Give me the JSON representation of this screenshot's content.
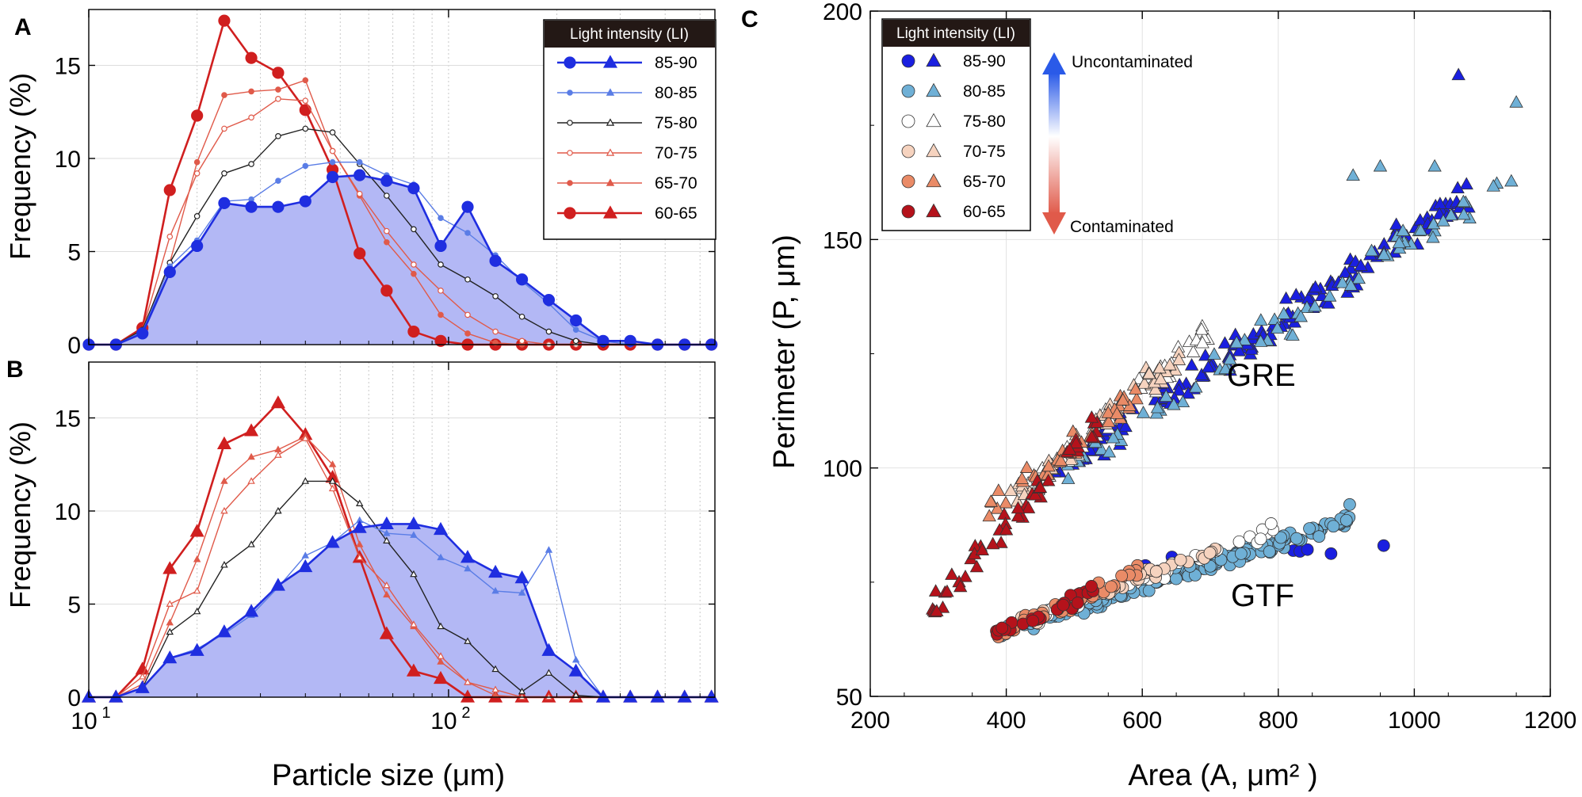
{
  "figure": {
    "panel_labels": [
      "A",
      "B",
      "C"
    ],
    "legend_title": "Light intensity (LI)",
    "x_axis_label_left": "Particle size (μm)",
    "y_axis_label_left": "Frequency (%)",
    "x_axis_label_right": "Area (A, μm² )",
    "y_axis_label_right": "Perimeter (P, μm)",
    "arrow_top_label": "Uncontaminated",
    "arrow_bottom_label": "Contaminated",
    "group_label_1": "GRE",
    "group_label_2": "GTF"
  },
  "colors": {
    "li_85_90": "#1f2ee0",
    "li_80_85": "#5a7de6",
    "li_75_80": "#222222",
    "li_70_75": "#e05a4a",
    "li_65_70": "#e05a4a",
    "li_60_65": "#d01f1f",
    "fill_85_90": "#b3b8f5",
    "scatter_85_90": "#1a1fe0",
    "scatter_80_85": "#6fb0d6",
    "scatter_75_80": "#ffffff",
    "scatter_70_75": "#f6d3bf",
    "scatter_65_70": "#ea8b67",
    "scatter_60_65": "#b5121b"
  },
  "chart_data": [
    {
      "panel": "A",
      "type": "line",
      "title": "",
      "xlabel": "Particle size (μm)",
      "ylabel": "Frequency (%)",
      "xscale": "log",
      "xlim": [
        10,
        550
      ],
      "ylim": [
        0,
        18
      ],
      "yticks": [
        0,
        5,
        10,
        15
      ],
      "grid": true,
      "legend_position": "top-right",
      "x": [
        10,
        11.9,
        14.1,
        16.8,
        20,
        23.8,
        28.3,
        33.6,
        40,
        47.6,
        56.6,
        67.3,
        80,
        95.1,
        113,
        135,
        160,
        190,
        226,
        269,
        320,
        381,
        453,
        538
      ],
      "series": [
        {
          "name": "85-90",
          "filled": true,
          "markers": [
            "circle",
            "triangle"
          ],
          "values": [
            0,
            0,
            0.6,
            3.9,
            5.3,
            7.6,
            7.4,
            7.4,
            7.7,
            9.0,
            9.1,
            8.8,
            8.4,
            5.3,
            7.4,
            4.5,
            3.5,
            2.4,
            1.3,
            0.2,
            0.2,
            0,
            0,
            0
          ]
        },
        {
          "name": "80-85",
          "values": [
            0,
            0,
            0.7,
            4.2,
            5.6,
            7.7,
            7.8,
            8.8,
            9.6,
            9.8,
            9.8,
            9.1,
            8.6,
            6.8,
            6.0,
            4.8,
            3.4,
            2.2,
            0.8,
            0.2,
            0,
            0,
            0,
            0
          ]
        },
        {
          "name": "75-80",
          "values": [
            0,
            0,
            0.8,
            4.4,
            6.9,
            9.2,
            9.7,
            11.2,
            11.6,
            11.4,
            9.7,
            8.0,
            6.2,
            4.3,
            3.5,
            2.6,
            1.5,
            0.7,
            0.2,
            0,
            0,
            0,
            0,
            0
          ]
        },
        {
          "name": "70-75",
          "values": [
            0,
            0,
            0.8,
            5.8,
            9.2,
            11.6,
            12.2,
            13.2,
            13.1,
            10.4,
            8.1,
            6.1,
            4.3,
            2.9,
            1.6,
            0.7,
            0.2,
            0,
            0,
            0,
            0,
            0,
            0,
            0
          ]
        },
        {
          "name": "65-70",
          "values": [
            0,
            0,
            0.8,
            4.4,
            9.8,
            13.4,
            13.6,
            13.7,
            14.2,
            10.4,
            8.0,
            5.5,
            3.8,
            1.6,
            0.6,
            0.1,
            0,
            0,
            0,
            0,
            0,
            0,
            0,
            0
          ]
        },
        {
          "name": "60-65",
          "values": [
            0,
            0,
            0.9,
            8.3,
            12.3,
            17.4,
            15.4,
            14.6,
            12.6,
            9.4,
            4.9,
            2.9,
            0.7,
            0.2,
            0,
            0,
            0,
            0,
            0,
            0,
            0,
            0,
            0,
            0
          ]
        }
      ]
    },
    {
      "panel": "B",
      "type": "line",
      "title": "",
      "xlabel": "Particle size (μm)",
      "ylabel": "Frequency (%)",
      "xscale": "log",
      "xlim": [
        10,
        550
      ],
      "ylim": [
        0,
        18
      ],
      "yticks": [
        0,
        5,
        10,
        15
      ],
      "xticks": [
        {
          "label": "10",
          "sup": "1"
        },
        {
          "label": "10",
          "sup": "2"
        }
      ],
      "grid": true,
      "x": [
        10,
        11.9,
        14.1,
        16.8,
        20,
        23.8,
        28.3,
        33.6,
        40,
        47.6,
        56.6,
        67.3,
        80,
        95.1,
        113,
        135,
        160,
        190,
        226,
        269,
        320,
        381,
        453,
        538
      ],
      "series": [
        {
          "name": "85-90",
          "filled": true,
          "values": [
            0,
            0,
            0.5,
            2.1,
            2.5,
            3.5,
            4.6,
            6.0,
            7.0,
            8.3,
            9.1,
            9.3,
            9.3,
            9.0,
            7.5,
            6.7,
            6.4,
            2.5,
            1.4,
            0,
            0,
            0,
            0,
            0
          ]
        },
        {
          "name": "80-85",
          "values": [
            0,
            0,
            0.5,
            2.1,
            2.6,
            3.4,
            4.4,
            5.9,
            7.6,
            8.3,
            9.5,
            8.8,
            8.7,
            7.5,
            6.9,
            5.7,
            5.6,
            7.9,
            2.0,
            0,
            0,
            0,
            0,
            0
          ]
        },
        {
          "name": "75-80",
          "values": [
            0,
            0,
            0.5,
            3.5,
            4.6,
            7.1,
            8.2,
            10.0,
            11.6,
            11.6,
            10.4,
            8.4,
            6.6,
            3.8,
            3.0,
            1.5,
            0.3,
            1.3,
            0.1,
            0,
            0,
            0,
            0,
            0
          ]
        },
        {
          "name": "70-75",
          "values": [
            0,
            0,
            1.1,
            5.0,
            5.7,
            10.0,
            11.6,
            13.0,
            13.9,
            11.2,
            7.5,
            6.0,
            3.9,
            2.2,
            0.8,
            0.4,
            0,
            0,
            0,
            0,
            0,
            0,
            0,
            0
          ]
        },
        {
          "name": "65-70",
          "values": [
            0,
            0,
            0.7,
            4.0,
            7.4,
            11.6,
            12.9,
            13.3,
            14.0,
            12.5,
            8.2,
            5.5,
            3.8,
            1.9,
            0.8,
            0.1,
            0,
            0,
            0,
            0,
            0,
            0,
            0,
            0
          ]
        },
        {
          "name": "60-65",
          "values": [
            0,
            0,
            1.5,
            6.9,
            8.9,
            13.6,
            14.3,
            15.8,
            14.1,
            11.8,
            7.5,
            3.4,
            1.4,
            1.0,
            0,
            0,
            0,
            0,
            0,
            0,
            0,
            0,
            0,
            0
          ]
        }
      ]
    },
    {
      "panel": "C",
      "type": "scatter",
      "title": "",
      "xlabel": "Area (A, μm² )",
      "ylabel": "Perimeter (P, μm)",
      "xlim": [
        200,
        1200
      ],
      "ylim": [
        50,
        200
      ],
      "xticks": [
        200,
        400,
        600,
        800,
        1000,
        1200
      ],
      "yticks": [
        50,
        100,
        150,
        200
      ],
      "grid": true,
      "legend_position": "top-left",
      "legend_rows": [
        "85-90",
        "80-85",
        "75-80",
        "70-75",
        "65-70",
        "60-65"
      ],
      "groups": [
        {
          "name": "GRE",
          "marker": "triangle",
          "series": [
            {
              "name": "85-90",
              "area_range": [
                460,
                1080
              ],
              "perimeter_center": [
                [
                  460,
                  98
                ],
                [
                  1060,
                  158
                ]
              ],
              "outliers": [
                [
                  1065,
                  186
                ],
                [
                  1080,
                  157
                ]
              ]
            },
            {
              "name": "80-85",
              "area_range": [
                450,
                1150
              ],
              "perimeter_center": [
                [
                  450,
                  96
                ],
                [
                  1150,
                  165
                ]
              ],
              "outliers": [
                [
                  1150,
                  180
                ],
                [
                  1030,
                  166
                ],
                [
                  950,
                  166
                ],
                [
                  910,
                  164
                ]
              ]
            },
            {
              "name": "75-80",
              "area_range": [
                430,
                700
              ],
              "perimeter_center": [
                [
                  430,
                  95
                ],
                [
                  700,
                  130
                ]
              ]
            },
            {
              "name": "70-75",
              "area_range": [
                400,
                660
              ],
              "perimeter_center": [
                [
                  400,
                  92
                ],
                [
                  660,
                  125
                ]
              ]
            },
            {
              "name": "65-70",
              "area_range": [
                370,
                600
              ],
              "perimeter_center": [
                [
                  370,
                  89
                ],
                [
                  600,
                  117
                ]
              ]
            },
            {
              "name": "60-65",
              "area_range": [
                290,
                540
              ],
              "perimeter_center": [
                [
                  290,
                  69
                ],
                [
                  540,
                  110
                ]
              ]
            }
          ]
        },
        {
          "name": "GTF",
          "marker": "circle",
          "series": [
            {
              "name": "85-90",
              "area_range": [
                560,
                960
              ],
              "perimeter_center": [
                [
                  560,
                  78
                ],
                [
                  960,
                  83
                ]
              ],
              "outliers": [
                [
                  955,
                  83
                ]
              ]
            },
            {
              "name": "80-85",
              "area_range": [
                390,
                910
              ],
              "perimeter_center": [
                [
                  390,
                  64
                ],
                [
                  850,
                  86
                ]
              ],
              "outliers": [
                [
                  905,
                  92
                ],
                [
                  860,
                  85
                ]
              ]
            },
            {
              "name": "75-80",
              "area_range": [
                440,
                800
              ],
              "perimeter_center": [
                [
                  440,
                  67
                ],
                [
                  800,
                  87
                ]
              ]
            },
            {
              "name": "70-75",
              "area_range": [
                420,
                720
              ],
              "perimeter_center": [
                [
                  420,
                  66
                ],
                [
                  720,
                  83
                ]
              ]
            },
            {
              "name": "65-70",
              "area_range": [
                370,
                600
              ],
              "perimeter_center": [
                [
                  370,
                  62
                ],
                [
                  600,
                  78
                ]
              ]
            },
            {
              "name": "60-65",
              "area_range": [
                380,
                530
              ],
              "perimeter_center": [
                [
                  380,
                  64
                ],
                [
                  530,
                  73
                ]
              ]
            }
          ]
        }
      ]
    }
  ]
}
